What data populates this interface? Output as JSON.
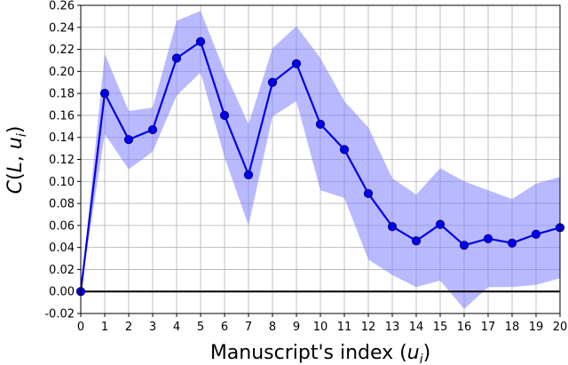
{
  "chart_data": {
    "type": "line",
    "title": "",
    "xlabel": "Manuscript's index (u_i)",
    "ylabel": "C(L, u_i)",
    "x": [
      0,
      1,
      2,
      3,
      4,
      5,
      6,
      7,
      8,
      9,
      10,
      11,
      12,
      13,
      14,
      15,
      16,
      17,
      18,
      19,
      20
    ],
    "series": [
      {
        "values": [
          0.0,
          0.18,
          0.138,
          0.147,
          0.212,
          0.227,
          0.16,
          0.106,
          0.19,
          0.207,
          0.152,
          0.129,
          0.089,
          0.059,
          0.046,
          0.061,
          0.042,
          0.048,
          0.044,
          0.052,
          0.058
        ],
        "lower": [
          0.0,
          0.143,
          0.111,
          0.127,
          0.178,
          0.199,
          0.122,
          0.06,
          0.159,
          0.173,
          0.092,
          0.085,
          0.029,
          0.015,
          0.004,
          0.01,
          -0.016,
          0.004,
          0.004,
          0.006,
          0.012
        ],
        "upper": [
          0.0,
          0.216,
          0.164,
          0.167,
          0.246,
          0.255,
          0.2,
          0.152,
          0.221,
          0.241,
          0.212,
          0.173,
          0.149,
          0.103,
          0.088,
          0.112,
          0.1,
          0.092,
          0.084,
          0.098,
          0.104
        ],
        "color": "#0000ee",
        "band_color": "#8080ff"
      }
    ],
    "hline": 0,
    "xlim": [
      0,
      20
    ],
    "ylim": [
      -0.02,
      0.26
    ],
    "xticks": [
      "0",
      "1",
      "2",
      "3",
      "4",
      "5",
      "6",
      "7",
      "8",
      "9",
      "10",
      "11",
      "12",
      "13",
      "14",
      "15",
      "16",
      "17",
      "18",
      "19",
      "20"
    ],
    "yticks": [
      "-0.02",
      "0.00",
      "0.02",
      "0.04",
      "0.06",
      "0.08",
      "0.10",
      "0.12",
      "0.14",
      "0.16",
      "0.18",
      "0.20",
      "0.22",
      "0.24",
      "0.26"
    ],
    "grid": true
  }
}
